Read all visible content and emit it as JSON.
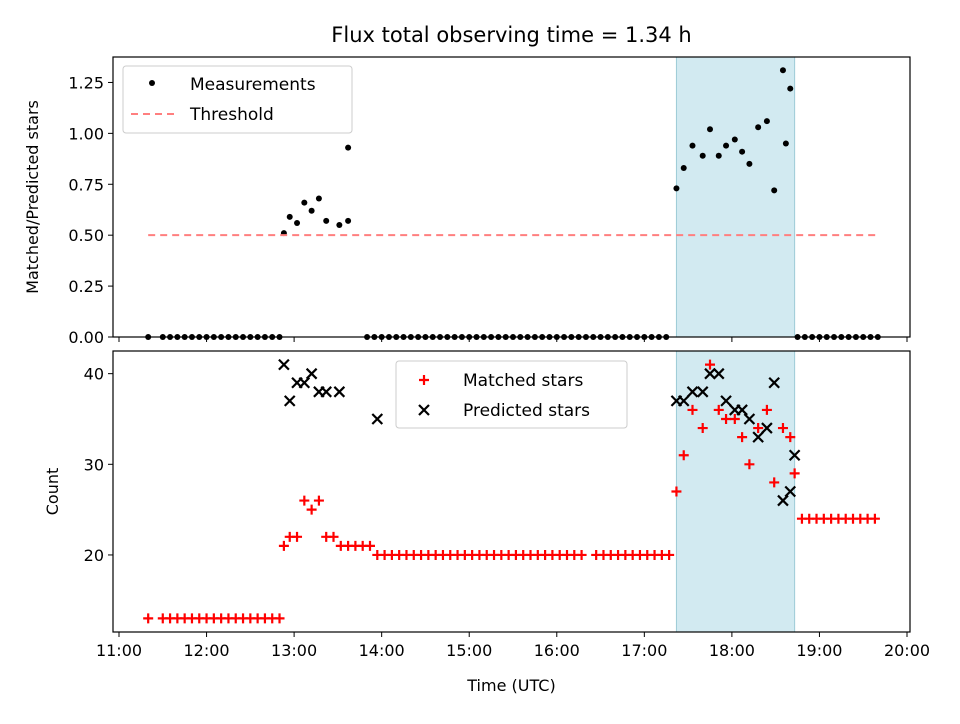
{
  "chart_data": {
    "title": "Flux total observing time = 1.34 h",
    "xlabel": "Time (UTC)",
    "x_unit": "hours UTC",
    "xlim": [
      "11:00",
      "20:00"
    ],
    "x_ticks": [
      "11:00",
      "12:00",
      "13:00",
      "14:00",
      "15:00",
      "16:00",
      "17:00",
      "18:00",
      "19:00",
      "20:00"
    ],
    "highlight_span": {
      "x": [
        "17:22",
        "18:43"
      ],
      "color": "#add8e6"
    },
    "panels": [
      {
        "type": "scatter",
        "ylabel": "Matched/Predicted stars",
        "ylim": [
          0,
          1.375
        ],
        "y_ticks": [
          "0.00",
          "0.25",
          "0.50",
          "0.75",
          "1.00",
          "1.25"
        ],
        "legend": {
          "placement": "upper-left",
          "entries": [
            "Measurements",
            "Threshold"
          ]
        },
        "series": [
          {
            "name": "Measurements",
            "marker": "dot",
            "color": "#000000",
            "x": [
              "11:20",
              "11:30",
              "11:35",
              "11:40",
              "11:45",
              "11:50",
              "11:55",
              "12:00",
              "12:05",
              "12:10",
              "12:15",
              "12:20",
              "12:25",
              "12:30",
              "12:35",
              "12:40",
              "12:45",
              "12:50",
              "12:53",
              "12:57",
              "13:02",
              "13:07",
              "13:12",
              "13:17",
              "13:22",
              "13:31",
              "13:37",
              "13:50",
              "13:55",
              "14:00",
              "14:05",
              "14:10",
              "14:15",
              "14:20",
              "14:25",
              "14:30",
              "14:35",
              "14:40",
              "14:45",
              "14:50",
              "14:55",
              "15:00",
              "15:05",
              "15:10",
              "15:15",
              "15:20",
              "15:25",
              "15:30",
              "15:35",
              "15:40",
              "15:45",
              "15:50",
              "15:55",
              "16:00",
              "16:05",
              "16:10",
              "16:15",
              "16:20",
              "16:25",
              "16:30",
              "16:35",
              "16:40",
              "16:45",
              "16:50",
              "16:55",
              "17:00",
              "17:05",
              "17:10",
              "17:15",
              "17:22",
              "17:27",
              "17:33",
              "17:40",
              "17:45",
              "17:51",
              "17:56",
              "18:02",
              "18:07",
              "18:12",
              "18:18",
              "18:24",
              "18:29",
              "18:35",
              "18:40",
              "18:45",
              "18:50",
              "18:55",
              "19:00",
              "19:05",
              "19:10",
              "19:15",
              "19:20",
              "19:25",
              "19:30",
              "19:35",
              "19:40"
            ],
            "y": [
              0,
              0,
              0,
              0,
              0,
              0,
              0,
              0,
              0,
              0,
              0,
              0,
              0,
              0,
              0,
              0,
              0,
              0,
              0.51,
              0.59,
              0.56,
              0.66,
              0.62,
              0.68,
              0.57,
              0.55,
              0.57,
              0,
              0,
              0,
              0,
              0,
              0,
              0,
              0,
              0,
              0,
              0,
              0,
              0,
              0,
              0,
              0,
              0,
              0,
              0,
              0,
              0,
              0,
              0,
              0,
              0,
              0,
              0,
              0,
              0,
              0,
              0,
              0,
              0,
              0,
              0,
              0,
              0,
              0,
              0,
              0,
              0,
              0,
              0.73,
              0.83,
              0.94,
              0.89,
              1.02,
              0.89,
              0.94,
              0.97,
              0.91,
              0.85,
              1.03,
              1.06,
              0.72,
              1.31,
              1.22,
              0,
              0,
              0,
              0,
              0,
              0,
              0,
              0,
              0,
              0,
              0,
              0
            ]
          },
          {
            "name": "Threshold",
            "style": "dashed",
            "color": "#ff7f7f",
            "x": [
              "11:20",
              "19:40"
            ],
            "y": [
              0.5,
              0.5
            ]
          }
        ],
        "visible_extra_points": [
          {
            "x": [
              "13:37",
              "18:37"
            ],
            "y": [
              0.93,
              0.95
            ],
            "note": ""
          }
        ]
      },
      {
        "type": "scatter",
        "ylabel": "Count",
        "ylim": [
          11.5,
          42.5
        ],
        "y_ticks": [
          "20",
          "30",
          "40"
        ],
        "legend": {
          "placement": "upper-center",
          "entries": [
            "Matched stars",
            "Predicted stars"
          ]
        },
        "series": [
          {
            "name": "Matched stars",
            "marker": "plus",
            "color": "#ff0000",
            "x": [
              "11:20",
              "11:30",
              "11:35",
              "11:40",
              "11:45",
              "11:50",
              "11:55",
              "12:00",
              "12:05",
              "12:10",
              "12:15",
              "12:20",
              "12:25",
              "12:30",
              "12:35",
              "12:40",
              "12:45",
              "12:50",
              "12:53",
              "12:57",
              "13:02",
              "13:07",
              "13:12",
              "13:17",
              "13:22",
              "13:27",
              "13:32",
              "13:37",
              "13:42",
              "13:47",
              "13:52",
              "13:57",
              "14:02",
              "14:07",
              "14:12",
              "14:17",
              "14:22",
              "14:27",
              "14:32",
              "14:37",
              "14:42",
              "14:47",
              "14:52",
              "14:57",
              "15:02",
              "15:07",
              "15:12",
              "15:17",
              "15:22",
              "15:27",
              "15:32",
              "15:37",
              "15:42",
              "15:47",
              "15:52",
              "15:57",
              "16:02",
              "16:07",
              "16:12",
              "16:17",
              "16:27",
              "16:32",
              "16:37",
              "16:42",
              "16:47",
              "16:52",
              "16:57",
              "17:02",
              "17:07",
              "17:12",
              "17:17",
              "17:22",
              "17:27",
              "17:33",
              "17:40",
              "17:45",
              "17:51",
              "17:56",
              "18:02",
              "18:07",
              "18:12",
              "18:18",
              "18:24",
              "18:29",
              "18:35",
              "18:40",
              "18:43",
              "18:48",
              "18:53",
              "18:58",
              "19:03",
              "19:08",
              "19:13",
              "19:18",
              "19:23",
              "19:28",
              "19:33",
              "19:38"
            ],
            "y": [
              13,
              13,
              13,
              13,
              13,
              13,
              13,
              13,
              13,
              13,
              13,
              13,
              13,
              13,
              13,
              13,
              13,
              13,
              21,
              22,
              22,
              26,
              25,
              26,
              22,
              22,
              21,
              21,
              21,
              21,
              21,
              20,
              20,
              20,
              20,
              20,
              20,
              20,
              20,
              20,
              20,
              20,
              20,
              20,
              20,
              20,
              20,
              20,
              20,
              20,
              20,
              20,
              20,
              20,
              20,
              20,
              20,
              20,
              20,
              20,
              20,
              20,
              20,
              20,
              20,
              20,
              20,
              20,
              20,
              20,
              20,
              27,
              31,
              36,
              34,
              41,
              36,
              35,
              35,
              33,
              30,
              34,
              36,
              28,
              34,
              33,
              29,
              24,
              24,
              24,
              24,
              24,
              24,
              24,
              24,
              24,
              24,
              24
            ]
          },
          {
            "name": "Predicted stars",
            "marker": "x",
            "color": "#000000",
            "x": [
              "12:53",
              "12:57",
              "13:02",
              "13:07",
              "13:12",
              "13:17",
              "13:22",
              "13:31",
              "13:57",
              "17:22",
              "17:27",
              "17:33",
              "17:40",
              "17:45",
              "17:51",
              "17:56",
              "18:02",
              "18:07",
              "18:12",
              "18:18",
              "18:24",
              "18:29",
              "18:35",
              "18:40",
              "18:43"
            ],
            "y": [
              41,
              37,
              39,
              39,
              40,
              38,
              38,
              38,
              35,
              37,
              37,
              38,
              38,
              40,
              40,
              37,
              36,
              36,
              35,
              33,
              34,
              39,
              26,
              27,
              31
            ]
          }
        ]
      }
    ]
  }
}
